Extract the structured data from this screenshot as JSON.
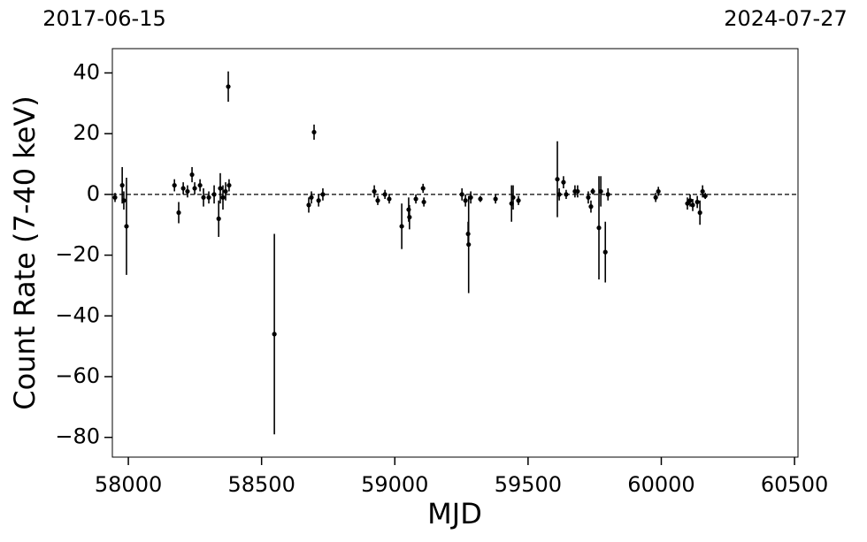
{
  "chart_data": {
    "type": "scatter",
    "annotations": [
      "2017-06-15",
      "2024-07-27"
    ],
    "x_label": "MJD",
    "y_label": "Count Rate (7-40 keV)",
    "xlim": [
      57940,
      60513
    ],
    "ylim": [
      -86.5,
      48
    ],
    "xticks": [
      58000,
      58500,
      59000,
      59500,
      60000,
      60500
    ],
    "yticks": [
      {
        "value": -80,
        "label": "−80"
      },
      {
        "value": -60,
        "label": "−60"
      },
      {
        "value": -40,
        "label": "−40"
      },
      {
        "value": -20,
        "label": "−20"
      },
      0,
      20,
      40
    ],
    "hline": 0,
    "grid": false,
    "color": "#000000",
    "x": [
      57950,
      57977,
      57983,
      57993,
      58173,
      58189,
      58206,
      58222,
      58239,
      58249,
      58269,
      58282,
      58302,
      58322,
      58339,
      58345,
      58355,
      58365,
      58375,
      58378,
      58548,
      58677,
      58687,
      58697,
      58714,
      58730,
      58923,
      58936,
      58963,
      58979,
      59026,
      59052,
      59055,
      59079,
      59106,
      59109,
      59252,
      59265,
      59275,
      59277,
      59285,
      59321,
      59378,
      59438,
      59444,
      59464,
      59610,
      59617,
      59633,
      59643,
      59676,
      59686,
      59726,
      59736,
      59743,
      59766,
      59773,
      59790,
      59800,
      59979,
      59989,
      60098,
      60108,
      60118,
      60135,
      60145,
      60155,
      60165
    ],
    "values": [
      -1,
      3,
      -2,
      -10.5,
      3,
      -6,
      2,
      1,
      6.5,
      2,
      3,
      -1,
      -1,
      0,
      -8,
      2,
      -1,
      1,
      35.5,
      3,
      -46,
      -3.5,
      -1,
      20.5,
      -2,
      0,
      1,
      -2,
      0,
      -1.5,
      -10.5,
      -5,
      -7.5,
      -1.5,
      2,
      -2.5,
      0,
      -2,
      -13,
      -16.5,
      -1,
      -1.5,
      -1.5,
      -3,
      -1,
      -2,
      5,
      0,
      4,
      0,
      1,
      1,
      -1,
      -4,
      1,
      -11,
      1,
      -19,
      0,
      -1,
      1,
      -3,
      -2,
      -3.5,
      -2.5,
      -6,
      1,
      -0.5
    ],
    "errors": [
      1.5,
      6,
      3,
      16,
      2,
      3.5,
      2,
      2,
      2.5,
      2,
      2,
      3,
      2,
      3,
      6,
      5,
      4,
      3,
      5,
      2,
      33,
      2.5,
      2,
      2.5,
      2,
      2,
      2,
      1.5,
      1.5,
      1.5,
      7.5,
      4,
      4,
      1.5,
      1.5,
      1.5,
      2,
      2,
      4,
      16,
      2,
      1,
      1.5,
      6,
      4,
      1.5,
      12.5,
      2,
      2,
      1.5,
      2,
      2,
      2,
      2,
      1,
      17,
      5,
      10,
      2,
      1.5,
      1.5,
      2,
      2,
      2,
      2,
      4,
      2,
      1
    ]
  }
}
